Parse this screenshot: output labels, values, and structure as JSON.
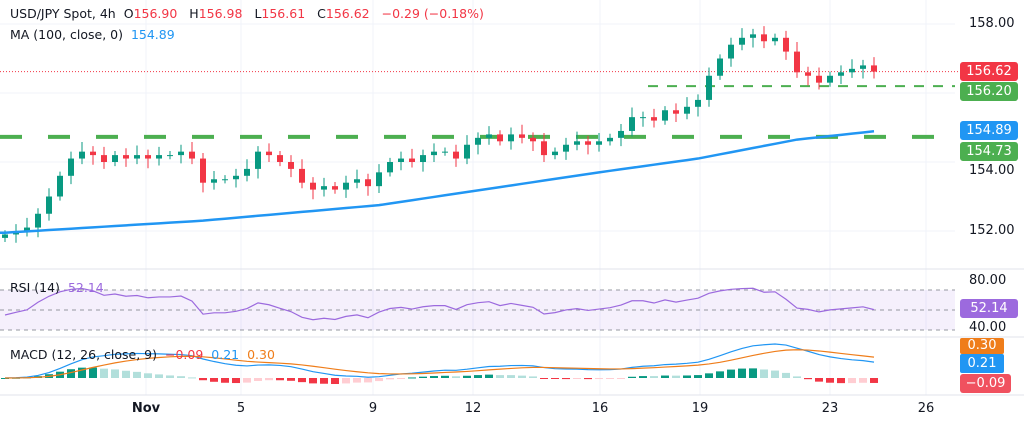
{
  "header": {
    "symbol": "USD/JPY Spot, 4h",
    "open_label": "O",
    "open": "156.90",
    "high_label": "H",
    "high": "156.98",
    "low_label": "L",
    "low": "156.61",
    "close_label": "C",
    "close": "156.62",
    "change": "−0.29 (−0.18%)"
  },
  "ma_legend": {
    "label": "MA (100, close, 0)",
    "value": "154.89"
  },
  "rsi_legend": {
    "label": "RSI (14)",
    "value": "52.14"
  },
  "macd_legend": {
    "label": "MACD (12, 26, close, 9)",
    "hist": "−0.09",
    "macd": "0.21",
    "signal": "0.30"
  },
  "price_axis": [
    "158.00",
    "154.00",
    "152.00"
  ],
  "rsi_axis": [
    "80.00",
    "40.00"
  ],
  "badges": {
    "last_price": "156.62",
    "level_upper": "156.20",
    "ma": "154.89",
    "level_lower": "154.73",
    "rsi": "52.14",
    "macd_signal": "0.30",
    "macd_line": "0.21",
    "macd_hist": "−0.09"
  },
  "time_axis": [
    "Nov",
    "5",
    "9",
    "12",
    "16",
    "19",
    "23",
    "26"
  ],
  "colors": {
    "up": "#089981",
    "down": "#f23645",
    "ma": "#2196f3",
    "rsi": "#9c6ade",
    "level": "#4caf50",
    "macd": "#2196f3",
    "signal": "#ef7d1a"
  },
  "chart_data": {
    "type": "candlestick",
    "timeframe": "4h",
    "close": [
      151.9,
      152.0,
      152.1,
      152.5,
      153.0,
      153.6,
      154.1,
      154.3,
      154.2,
      154.0,
      154.2,
      154.1,
      154.2,
      154.1,
      154.2,
      154.2,
      154.3,
      154.1,
      153.4,
      153.5,
      153.5,
      153.6,
      153.8,
      154.3,
      154.2,
      154.0,
      153.8,
      153.4,
      153.2,
      153.3,
      153.2,
      153.4,
      153.5,
      153.3,
      153.7,
      154.0,
      154.1,
      154.0,
      154.2,
      154.3,
      154.3,
      154.1,
      154.5,
      154.7,
      154.8,
      154.6,
      154.8,
      154.7,
      154.6,
      154.2,
      154.3,
      154.5,
      154.6,
      154.5,
      154.6,
      154.7,
      154.9,
      155.3,
      155.3,
      155.2,
      155.5,
      155.4,
      155.6,
      155.8,
      156.5,
      157.0,
      157.4,
      157.6,
      157.7,
      157.5,
      157.6,
      157.2,
      156.6,
      156.5,
      156.3,
      156.5,
      156.6,
      156.7,
      156.8,
      156.62
    ],
    "ma_points": [
      [
        0,
        151.95
      ],
      [
        18,
        152.3
      ],
      [
        34,
        152.75
      ],
      [
        54,
        153.7
      ],
      [
        63,
        154.1
      ],
      [
        72,
        154.65
      ],
      [
        79,
        154.89
      ]
    ],
    "horizontal_levels": [
      156.2,
      154.73
    ],
    "price_range": [
      151.6,
      158.7
    ],
    "rsi_levels": [
      70,
      50,
      30
    ]
  }
}
